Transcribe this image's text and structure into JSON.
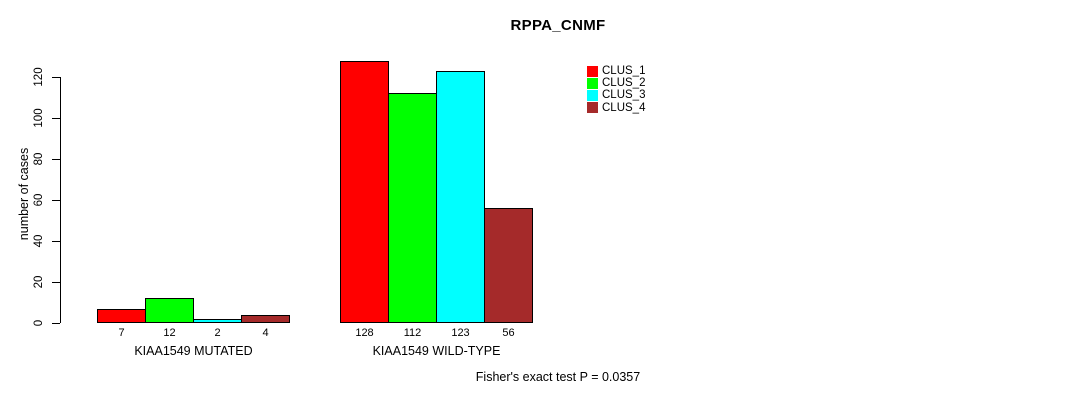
{
  "chart_data": {
    "type": "bar",
    "title": "RPPA_CNMF",
    "ylabel": "number of cases",
    "xlabel": "",
    "ylim": [
      0,
      120
    ],
    "yticks": [
      0,
      20,
      40,
      60,
      80,
      100,
      120
    ],
    "grid": false,
    "legend_position": "top-right",
    "categories": [
      "KIAA1549 MUTATED",
      "KIAA1549 WILD-TYPE"
    ],
    "series": [
      {
        "name": "CLUS_1",
        "color": "#FF0000",
        "values": [
          7,
          128
        ]
      },
      {
        "name": "CLUS_2",
        "color": "#00FF00",
        "values": [
          12,
          112
        ]
      },
      {
        "name": "CLUS_3",
        "color": "#00FFFF",
        "values": [
          2,
          123
        ]
      },
      {
        "name": "CLUS_4",
        "color": "#A52A2A",
        "values": [
          4,
          56
        ]
      }
    ],
    "bar_value_labels": [
      [
        "7",
        "12",
        "2",
        "4"
      ],
      [
        "128",
        "112",
        "123",
        "56"
      ]
    ],
    "annotation": "Fisher's exact test P = 0.0357",
    "colors": {
      "background": "#FFFFFF",
      "axis": "#000000",
      "text": "#000000",
      "bar_border": "#000000"
    }
  }
}
